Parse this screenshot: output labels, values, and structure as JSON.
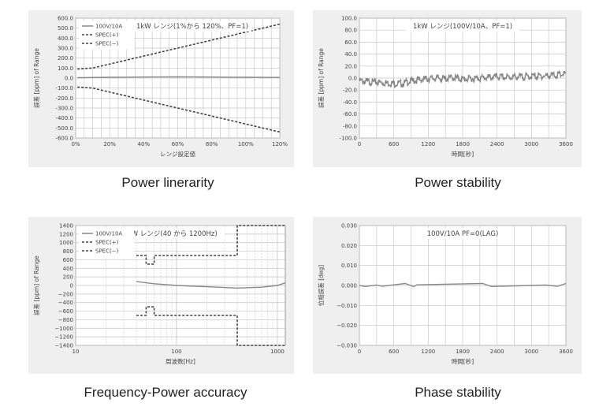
{
  "charts": [
    {
      "caption": "Power linerarity",
      "chart_data": {
        "type": "line",
        "title": "1kW レンジ(1%から 120%、PF=1)",
        "xlabel": "レンジ設定値",
        "ylabel": "誤差 [ppm] of Range",
        "xlim": [
          0,
          120
        ],
        "ylim": [
          -600,
          600
        ],
        "x_ticks": [
          0,
          20,
          40,
          60,
          80,
          100,
          120
        ],
        "x_tick_labels": [
          "0%",
          "20%",
          "40%",
          "60%",
          "80%",
          "100%",
          "120%"
        ],
        "y_ticks": [
          600,
          500,
          400,
          300,
          200,
          100,
          0,
          -100,
          -200,
          -300,
          -400,
          -500,
          -600
        ],
        "y_tick_labels": [
          "600.0",
          "500.0",
          "400.0",
          "300.0",
          "200.0",
          "100.0",
          "0.0",
          "-100.0",
          "-200.0",
          "-300.0",
          "-400.0",
          "-500.0",
          "-600.0"
        ],
        "grid": true,
        "legend_position": "top-left",
        "series": [
          {
            "name": "100V/10A",
            "style": "solid",
            "color": "#888888",
            "x": [
              1,
              5,
              10,
              20,
              30,
              40,
              50,
              60,
              70,
              80,
              90,
              100,
              110,
              120
            ],
            "y": [
              4,
              5,
              6,
              8,
              9,
              10,
              11,
              12,
              11,
              10,
              9,
              8,
              7,
              6
            ]
          },
          {
            "name": "SPEC(+)",
            "style": "dashed",
            "color": "#444444",
            "x": [
              1,
              10,
              120
            ],
            "y": [
              90,
              100,
              540
            ]
          },
          {
            "name": "SPEC(−)",
            "style": "dashed",
            "color": "#444444",
            "x": [
              1,
              10,
              120
            ],
            "y": [
              -90,
              -100,
              -540
            ]
          }
        ]
      }
    },
    {
      "caption": "Power stability",
      "chart_data": {
        "type": "line",
        "title": "1kW レンジ(100V/10A、PF=1)",
        "xlabel": "時間[秒]",
        "ylabel": "誤差 [ppm] of Range",
        "xlim": [
          0,
          3600
        ],
        "ylim": [
          -100,
          100
        ],
        "x_ticks": [
          0,
          600,
          1200,
          1800,
          2400,
          3000,
          3600
        ],
        "x_tick_labels": [
          "0",
          "600",
          "1200",
          "1800",
          "2400",
          "3000",
          "3600"
        ],
        "y_ticks": [
          100,
          80,
          60,
          40,
          20,
          0,
          -20,
          -40,
          -60,
          -80,
          -100
        ],
        "y_tick_labels": [
          "100.0",
          "80.0",
          "60.0",
          "40.0",
          "20.0",
          "0.0",
          "-20.0",
          "-40.0",
          "-60.0",
          "-80.0",
          "-100.0"
        ],
        "grid": true,
        "series": [
          {
            "style": "solid",
            "color": "#888888",
            "x": [
              0,
              150,
              300,
              450,
              600,
              750,
              900,
              1050,
              1200,
              1350,
              1500,
              1650,
              1800,
              1950,
              2100,
              2250,
              2400,
              2550,
              2700,
              2850,
              3000,
              3150,
              3300,
              3450,
              3600
            ],
            "y": [
              -2,
              -3,
              -4,
              -5,
              -6,
              -6,
              -2,
              0,
              2,
              3,
              2,
              4,
              1,
              2,
              3,
              4,
              5,
              4,
              5,
              5,
              6,
              6,
              7,
              8,
              10
            ]
          }
        ]
      }
    },
    {
      "caption": "Frequency-Power accuracy",
      "chart_data": {
        "type": "line",
        "title": "1kW レンジ(40 から 1200Hz)",
        "xlabel": "周波数[Hz]",
        "ylabel": "誤差 [ppm] of Range",
        "xscale": "log",
        "xlim": [
          10,
          1200
        ],
        "ylim": [
          -1400,
          1400
        ],
        "x_ticks": [
          10,
          100,
          1000
        ],
        "x_tick_labels": [
          "10",
          "100",
          "1000"
        ],
        "y_ticks": [
          1400,
          1200,
          1000,
          800,
          600,
          400,
          200,
          0,
          -200,
          -400,
          -600,
          -800,
          -1000,
          -1200,
          -1400
        ],
        "y_tick_labels": [
          "1400",
          "1200",
          "1000",
          "800",
          "600",
          "400",
          "200",
          "0",
          "−200",
          "−400",
          "−600",
          "−800",
          "−1000",
          "−1200",
          "−1400"
        ],
        "grid": true,
        "legend_position": "top-left",
        "series": [
          {
            "name": "100V/10A",
            "style": "solid",
            "color": "#888888",
            "x": [
              40,
              60,
              100,
              200,
              400,
              700,
              1000,
              1200
            ],
            "y": [
              90,
              40,
              0,
              -30,
              -60,
              -40,
              0,
              60
            ]
          },
          {
            "name": "SPEC(+)",
            "style": "dashed",
            "color": "#444444",
            "x": [
              40,
              50,
              50,
              60,
              60,
              400,
              400,
              1200
            ],
            "y": [
              700,
              700,
              500,
              500,
              700,
              700,
              1400,
              1400
            ]
          },
          {
            "name": "SPEC(−)",
            "style": "dashed",
            "color": "#444444",
            "x": [
              40,
              50,
              50,
              60,
              60,
              400,
              400,
              1200
            ],
            "y": [
              -700,
              -700,
              -500,
              -500,
              -700,
              -700,
              -1400,
              -1400
            ]
          }
        ]
      }
    },
    {
      "caption": "Phase stability",
      "chart_data": {
        "type": "line",
        "title": "100V/10A PF=0(LAG)",
        "xlabel": "時間[秒]",
        "ylabel": "位相誤差 [deg]",
        "xlim": [
          0,
          3600
        ],
        "ylim": [
          -0.03,
          0.03
        ],
        "x_ticks": [
          0,
          600,
          1200,
          1800,
          2400,
          3000,
          3600
        ],
        "x_tick_labels": [
          "0",
          "600",
          "1200",
          "1800",
          "2400",
          "3000",
          "3600"
        ],
        "y_ticks": [
          0.03,
          0.02,
          0.01,
          0,
          -0.01,
          -0.02,
          -0.03
        ],
        "y_tick_labels": [
          "0.030",
          "0.020",
          "0.010",
          "0.000",
          "−0.010",
          "−0.020",
          "−0.030"
        ],
        "grid": true,
        "series": [
          {
            "style": "solid",
            "color": "#888888",
            "x": [
              0,
              100,
              300,
              400,
              800,
              950,
              1000,
              2150,
              2300,
              3250,
              3450,
              3600
            ],
            "y": [
              0,
              -0.0005,
              0.0002,
              -0.0004,
              0.001,
              -0.0006,
              0.0003,
              0.001,
              -0.0005,
              0.0002,
              -0.0004,
              0.001
            ]
          }
        ]
      }
    }
  ]
}
